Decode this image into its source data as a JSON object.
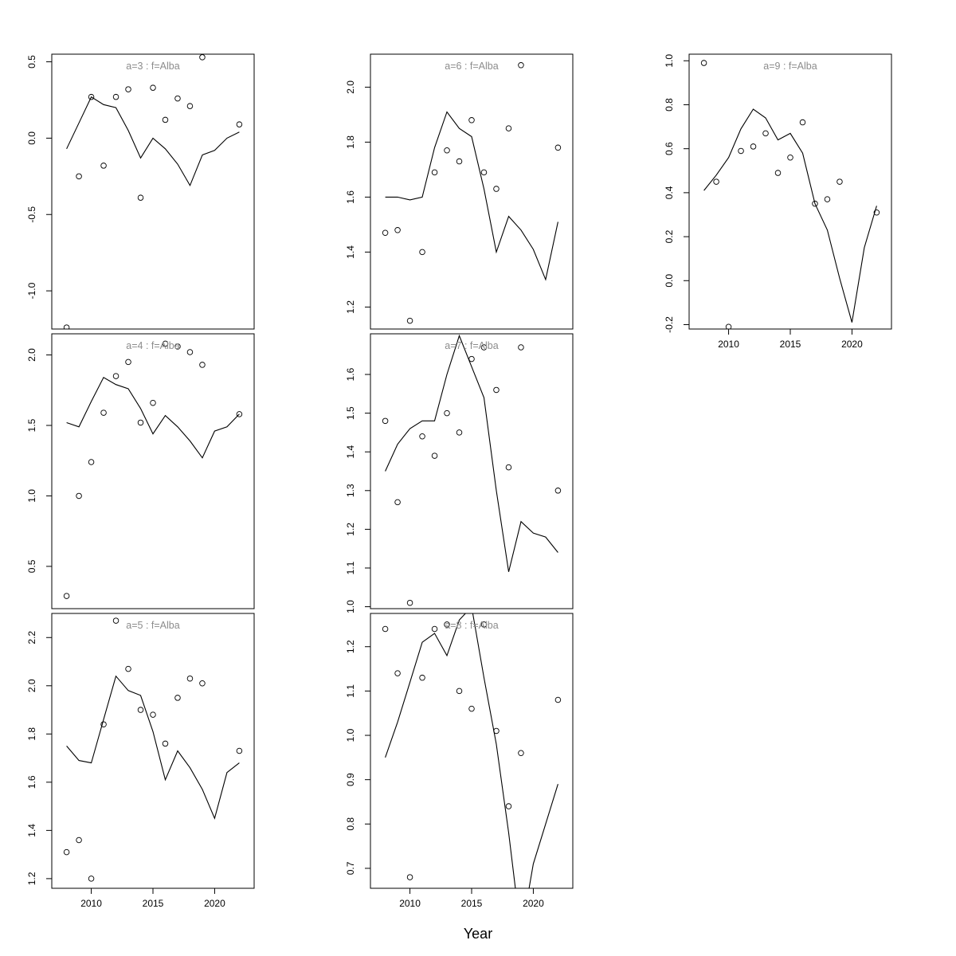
{
  "figure": {
    "xlabel": "Year"
  },
  "chart_data": [
    {
      "type": "line",
      "title": "a=3  :  f=Alba",
      "ylim": [
        -1.25,
        0.55
      ],
      "yticks": [
        -1.0,
        -0.5,
        0.0,
        0.5
      ],
      "xlim": [
        2006.8,
        2023.2
      ],
      "xticks": [],
      "series": [
        {
          "kind": "points",
          "x": [
            2008,
            2009,
            2011,
            2012,
            2013,
            2014,
            2015,
            2016,
            2017,
            2018,
            2019,
            2022
          ],
          "y": [
            -1.24,
            -0.25,
            -0.18,
            0.27,
            0.32,
            -0.39,
            0.33,
            0.12,
            0.26,
            0.21,
            0.53,
            0.09
          ]
        },
        {
          "kind": "line",
          "x": [
            2008,
            2009,
            2010,
            2011,
            2012,
            2013,
            2014,
            2015,
            2016,
            2017,
            2018,
            2019,
            2020,
            2021,
            2022
          ],
          "y": [
            -0.07,
            0.1,
            0.27,
            0.22,
            0.2,
            0.05,
            -0.13,
            0.0,
            -0.07,
            -0.17,
            -0.31,
            -0.11,
            -0.08,
            0.0,
            0.04
          ]
        },
        {
          "kind": "points",
          "x": [
            2010
          ],
          "y": [
            0.27
          ]
        }
      ]
    },
    {
      "type": "line",
      "title": "a=4  :  f=Alba",
      "ylim": [
        0.2,
        2.15
      ],
      "yticks": [
        0.5,
        1.0,
        1.5,
        2.0
      ],
      "xlim": [
        2006.8,
        2023.2
      ],
      "xticks": [],
      "series": [
        {
          "kind": "points",
          "x": [
            2008,
            2009,
            2010,
            2011,
            2012,
            2013,
            2014,
            2015,
            2016,
            2017,
            2018,
            2019,
            2022
          ],
          "y": [
            0.29,
            1.0,
            1.24,
            1.59,
            1.85,
            1.95,
            1.52,
            1.66,
            2.08,
            2.06,
            2.02,
            1.93,
            1.58
          ]
        },
        {
          "kind": "line",
          "x": [
            2008,
            2009,
            2010,
            2011,
            2012,
            2013,
            2014,
            2015,
            2016,
            2017,
            2018,
            2019,
            2020,
            2021,
            2022
          ],
          "y": [
            1.52,
            1.49,
            1.67,
            1.84,
            1.79,
            1.76,
            1.62,
            1.44,
            1.57,
            1.49,
            1.39,
            1.27,
            1.46,
            1.49,
            1.58
          ]
        }
      ]
    },
    {
      "type": "line",
      "title": "a=5  :  f=Alba",
      "ylim": [
        1.16,
        2.3
      ],
      "yticks": [
        1.2,
        1.4,
        1.6,
        1.8,
        2.0,
        2.2
      ],
      "xlim": [
        2006.8,
        2023.2
      ],
      "xticks": [
        2010,
        2015,
        2020
      ],
      "series": [
        {
          "kind": "points",
          "x": [
            2008,
            2009,
            2010,
            2011,
            2012,
            2013,
            2014,
            2015,
            2016,
            2017,
            2018,
            2019,
            2022
          ],
          "y": [
            1.31,
            1.36,
            1.2,
            1.84,
            2.27,
            2.07,
            1.9,
            1.88,
            1.76,
            1.95,
            2.03,
            2.01,
            1.73
          ]
        },
        {
          "kind": "line",
          "x": [
            2008,
            2009,
            2010,
            2011,
            2012,
            2013,
            2014,
            2015,
            2016,
            2017,
            2018,
            2019,
            2020,
            2021,
            2022
          ],
          "y": [
            1.75,
            1.69,
            1.68,
            1.86,
            2.04,
            1.98,
            1.96,
            1.81,
            1.61,
            1.73,
            1.66,
            1.57,
            1.45,
            1.64,
            1.68
          ]
        }
      ]
    },
    {
      "type": "line",
      "title": "a=6  :  f=Alba",
      "ylim": [
        1.12,
        2.12
      ],
      "yticks": [
        1.2,
        1.4,
        1.6,
        1.8,
        2.0
      ],
      "xlim": [
        2006.8,
        2023.2
      ],
      "xticks": [],
      "series": [
        {
          "kind": "points",
          "x": [
            2008,
            2009,
            2010,
            2011,
            2012,
            2013,
            2014,
            2015,
            2016,
            2017,
            2018,
            2019,
            2022
          ],
          "y": [
            1.47,
            1.48,
            1.15,
            1.4,
            1.69,
            1.77,
            1.73,
            1.88,
            1.69,
            1.63,
            1.85,
            2.08,
            1.78
          ]
        },
        {
          "kind": "line",
          "x": [
            2008,
            2009,
            2010,
            2011,
            2012,
            2013,
            2014,
            2015,
            2016,
            2017,
            2018,
            2019,
            2020,
            2021,
            2022
          ],
          "y": [
            1.6,
            1.6,
            1.59,
            1.6,
            1.78,
            1.91,
            1.85,
            1.82,
            1.63,
            1.4,
            1.53,
            1.48,
            1.41,
            1.3,
            1.51
          ]
        }
      ]
    },
    {
      "type": "line",
      "title": "a=7  :  f=Alba",
      "ylim": [
        0.995,
        1.705
      ],
      "yticks": [
        1.0,
        1.1,
        1.2,
        1.3,
        1.4,
        1.5,
        1.6
      ],
      "xlim": [
        2006.8,
        2023.2
      ],
      "xticks": [],
      "series": [
        {
          "kind": "points",
          "x": [
            2008,
            2009,
            2010,
            2011,
            2012,
            2013,
            2014,
            2015,
            2016,
            2017,
            2018,
            2019,
            2022
          ],
          "y": [
            1.48,
            1.27,
            1.01,
            1.44,
            1.39,
            1.5,
            1.45,
            1.64,
            1.67,
            1.56,
            1.36,
            1.67,
            1.3
          ]
        },
        {
          "kind": "line",
          "x": [
            2008,
            2009,
            2010,
            2011,
            2012,
            2013,
            2014,
            2015,
            2016,
            2017,
            2018,
            2019,
            2020,
            2021,
            2022
          ],
          "y": [
            1.35,
            1.42,
            1.46,
            1.48,
            1.48,
            1.6,
            1.7,
            1.62,
            1.54,
            1.3,
            1.09,
            1.22,
            1.19,
            1.18,
            1.14
          ]
        }
      ]
    },
    {
      "type": "line",
      "title": "a=8  :  f=Alba",
      "ylim": [
        0.655,
        1.275
      ],
      "yticks": [
        0.7,
        0.8,
        0.9,
        1.0,
        1.1,
        1.2
      ],
      "xlim": [
        2006.8,
        2023.2
      ],
      "xticks": [
        2010,
        2015,
        2020
      ],
      "series": [
        {
          "kind": "points",
          "x": [
            2008,
            2009,
            2010,
            2011,
            2012,
            2013,
            2014,
            2015,
            2016,
            2017,
            2018,
            2019,
            2022
          ],
          "y": [
            1.24,
            1.14,
            0.68,
            1.13,
            1.24,
            1.25,
            1.1,
            1.06,
            1.25,
            1.01,
            0.84,
            0.96,
            1.08
          ]
        },
        {
          "kind": "line",
          "x": [
            2008,
            2009,
            2010,
            2011,
            2012,
            2013,
            2014,
            2015,
            2016,
            2017,
            2018,
            2019,
            2020,
            2021,
            2022
          ],
          "y": [
            0.95,
            1.03,
            1.12,
            1.21,
            1.23,
            1.18,
            1.26,
            1.29,
            1.13,
            0.98,
            0.78,
            0.55,
            0.71,
            0.8,
            0.89
          ]
        }
      ]
    },
    {
      "type": "line",
      "title": "a=9  :  f=Alba",
      "ylim": [
        -0.22,
        1.03
      ],
      "yticks": [
        -0.2,
        0.0,
        0.2,
        0.4,
        0.6,
        0.8,
        1.0
      ],
      "xlim": [
        2006.8,
        2023.2
      ],
      "xticks": [
        2010,
        2015,
        2020
      ],
      "series": [
        {
          "kind": "points",
          "x": [
            2008,
            2009,
            2010,
            2011,
            2012,
            2013,
            2014,
            2015,
            2016,
            2017,
            2018,
            2019,
            2022
          ],
          "y": [
            0.99,
            0.45,
            -0.21,
            0.59,
            0.61,
            0.67,
            0.49,
            0.56,
            0.72,
            0.35,
            0.37,
            0.45,
            0.31
          ]
        },
        {
          "kind": "line",
          "x": [
            2008,
            2009,
            2010,
            2011,
            2012,
            2013,
            2014,
            2015,
            2016,
            2017,
            2018,
            2019,
            2020,
            2021,
            2022
          ],
          "y": [
            0.41,
            0.48,
            0.56,
            0.69,
            0.78,
            0.74,
            0.64,
            0.67,
            0.58,
            0.35,
            0.23,
            0.01,
            -0.19,
            0.15,
            0.34
          ]
        }
      ]
    }
  ]
}
